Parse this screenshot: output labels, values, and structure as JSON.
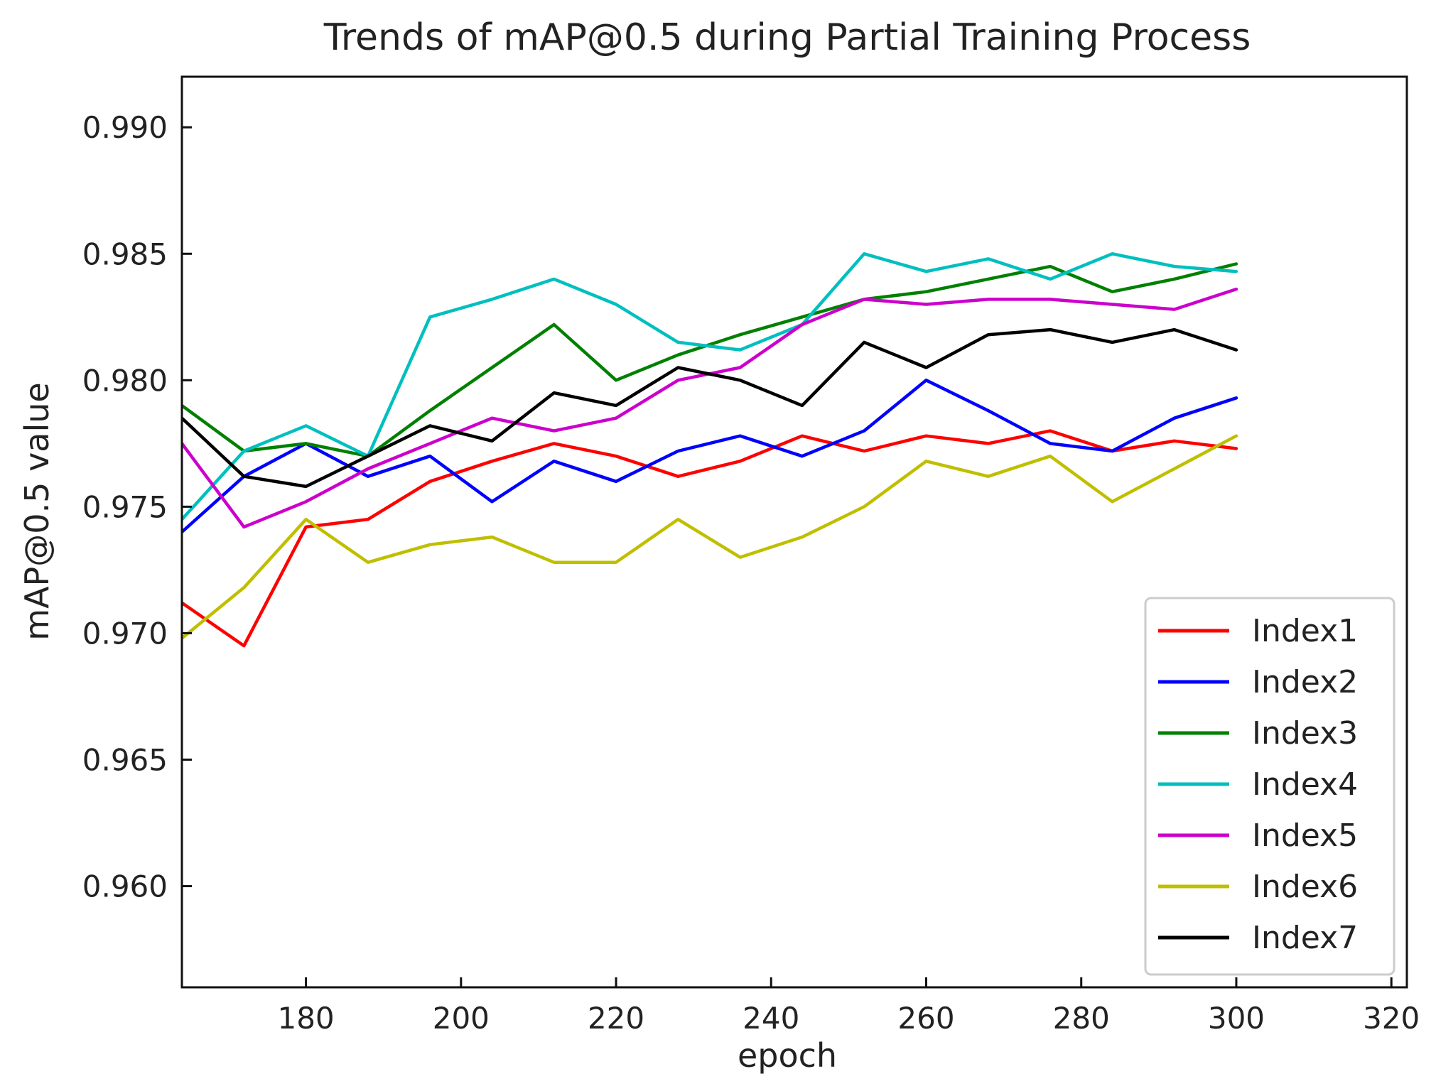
{
  "chart_data": {
    "type": "line",
    "title": "Trends of mAP@0.5 during Partial Training Process",
    "xlabel": "epoch",
    "ylabel": "mAP@0.5 value",
    "xlim": [
      164,
      322
    ],
    "ylim": [
      0.956,
      0.992
    ],
    "xticks": [
      180,
      200,
      220,
      240,
      260,
      280,
      300,
      320
    ],
    "yticks": [
      0.96,
      0.965,
      0.97,
      0.975,
      0.98,
      0.985,
      0.99
    ],
    "ytick_decimals": 3,
    "grid": false,
    "legend_position": "bottom-right",
    "series": [
      {
        "name": "Index1",
        "color": "#ff0000",
        "x": [
          164,
          172,
          180,
          188,
          196,
          204,
          212,
          220,
          228,
          236,
          244,
          252,
          260,
          268,
          276,
          284,
          292,
          300
        ],
        "values": [
          0.9712,
          0.9695,
          0.9742,
          0.9745,
          0.976,
          0.9768,
          0.9775,
          0.977,
          0.9762,
          0.9768,
          0.9778,
          0.9772,
          0.9778,
          0.9775,
          0.978,
          0.9772,
          0.9776,
          0.9773
        ]
      },
      {
        "name": "Index2",
        "color": "#0000ff",
        "x": [
          164,
          172,
          180,
          188,
          196,
          204,
          212,
          220,
          228,
          236,
          244,
          252,
          260,
          268,
          276,
          284,
          292,
          300
        ],
        "values": [
          0.974,
          0.9762,
          0.9775,
          0.9762,
          0.977,
          0.9752,
          0.9768,
          0.976,
          0.9772,
          0.9778,
          0.977,
          0.978,
          0.98,
          0.9788,
          0.9775,
          0.9772,
          0.9785,
          0.9793
        ]
      },
      {
        "name": "Index3",
        "color": "#008000",
        "x": [
          164,
          172,
          180,
          188,
          196,
          204,
          212,
          220,
          228,
          236,
          244,
          252,
          260,
          268,
          276,
          284,
          292,
          300
        ],
        "values": [
          0.979,
          0.9772,
          0.9775,
          0.977,
          0.9788,
          0.9805,
          0.9822,
          0.98,
          0.981,
          0.9818,
          0.9825,
          0.9832,
          0.9835,
          0.984,
          0.9845,
          0.9835,
          0.984,
          0.9846
        ]
      },
      {
        "name": "Index4",
        "color": "#00bfbf",
        "x": [
          164,
          172,
          180,
          188,
          196,
          204,
          212,
          220,
          228,
          236,
          244,
          252,
          260,
          268,
          276,
          284,
          292,
          300
        ],
        "values": [
          0.9745,
          0.9772,
          0.9782,
          0.977,
          0.9825,
          0.9832,
          0.984,
          0.983,
          0.9815,
          0.9812,
          0.9822,
          0.985,
          0.9843,
          0.9848,
          0.984,
          0.985,
          0.9845,
          0.9843
        ]
      },
      {
        "name": "Index5",
        "color": "#cc00cc",
        "x": [
          164,
          172,
          180,
          188,
          196,
          204,
          212,
          220,
          228,
          236,
          244,
          252,
          260,
          268,
          276,
          284,
          292,
          300
        ],
        "values": [
          0.9775,
          0.9742,
          0.9752,
          0.9765,
          0.9775,
          0.9785,
          0.978,
          0.9785,
          0.98,
          0.9805,
          0.9822,
          0.9832,
          0.983,
          0.9832,
          0.9832,
          0.983,
          0.9828,
          0.9836
        ]
      },
      {
        "name": "Index6",
        "color": "#bfbf00",
        "x": [
          164,
          172,
          180,
          188,
          196,
          204,
          212,
          220,
          228,
          236,
          244,
          252,
          260,
          268,
          276,
          284,
          292,
          300
        ],
        "values": [
          0.9698,
          0.9718,
          0.9745,
          0.9728,
          0.9735,
          0.9738,
          0.9728,
          0.9728,
          0.9745,
          0.973,
          0.9738,
          0.975,
          0.9768,
          0.9762,
          0.977,
          0.9752,
          0.9765,
          0.9778
        ]
      },
      {
        "name": "Index7",
        "color": "#000000",
        "x": [
          164,
          172,
          180,
          188,
          196,
          204,
          212,
          220,
          228,
          236,
          244,
          252,
          260,
          268,
          276,
          284,
          292,
          300
        ],
        "values": [
          0.9785,
          0.9762,
          0.9758,
          0.977,
          0.9782,
          0.9776,
          0.9795,
          0.979,
          0.9805,
          0.98,
          0.979,
          0.9815,
          0.9805,
          0.9818,
          0.982,
          0.9815,
          0.982,
          0.9812
        ]
      }
    ]
  }
}
